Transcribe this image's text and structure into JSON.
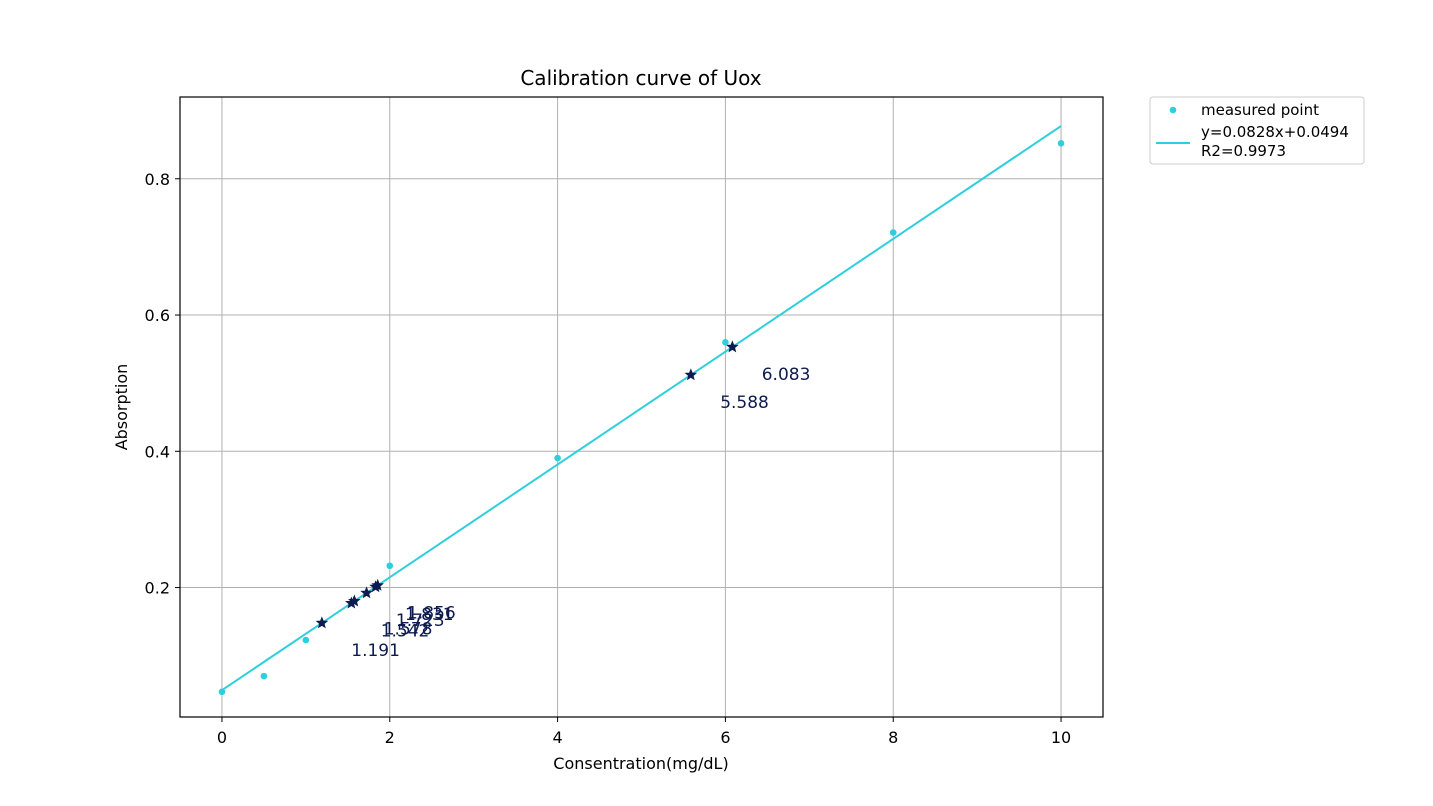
{
  "chart_data": {
    "type": "scatter",
    "title": "Calibration curve of Uox",
    "xlabel": "Consentration(mg/dL)",
    "ylabel": "Absorption",
    "xlim": [
      -0.5,
      10.5
    ],
    "ylim": [
      0.01,
      0.92
    ],
    "xticks": [
      "0",
      "2",
      "4",
      "6",
      "8",
      "10"
    ],
    "yticks": [
      "0.2",
      "0.4",
      "0.6",
      "0.8"
    ],
    "grid": true,
    "legend_position": "outside-top-right",
    "colors": {
      "fit": "#2ecfdc",
      "samples": "#0d1b50",
      "axes": "#000000",
      "grid": "#b0b0b0"
    },
    "measured_points": {
      "name": "measured point",
      "x": [
        0,
        0.5,
        1,
        2,
        4,
        6,
        8,
        10
      ],
      "y": [
        0.047,
        0.07,
        0.123,
        0.232,
        0.39,
        0.56,
        0.721,
        0.852
      ]
    },
    "fit_line": {
      "name": "y=0.0828x+0.0494",
      "name_line2": "R2=0.9973",
      "slope": 0.0828,
      "intercept": 0.0494,
      "x_range": [
        0,
        10
      ]
    },
    "samples": {
      "marker": "star",
      "points": [
        {
          "x": 1.191,
          "label": "1.191"
        },
        {
          "x": 1.542,
          "label": "1.542"
        },
        {
          "x": 1.578,
          "label": "1.578"
        },
        {
          "x": 1.723,
          "label": "1.723"
        },
        {
          "x": 1.831,
          "label": "1.831"
        },
        {
          "x": 1.856,
          "label": "1.856"
        },
        {
          "x": 5.588,
          "label": "5.588"
        },
        {
          "x": 6.083,
          "label": "6.083"
        }
      ]
    }
  }
}
